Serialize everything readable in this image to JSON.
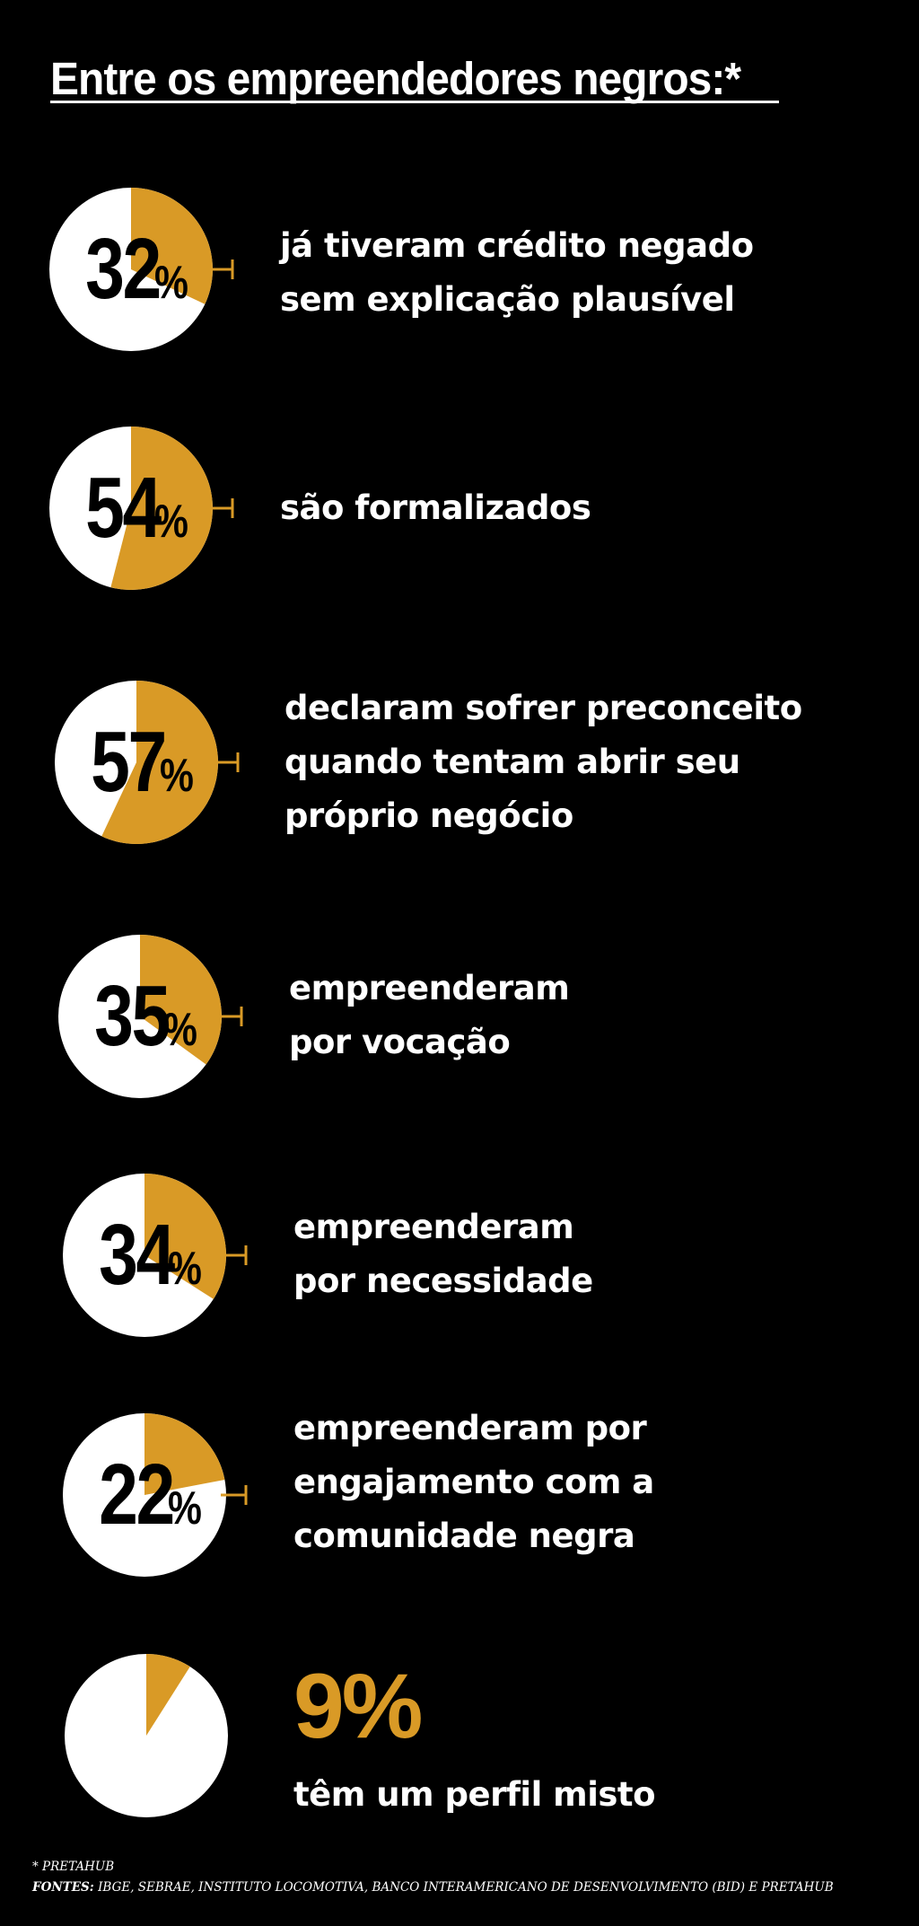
{
  "title": "Entre os empreendedores negros:*",
  "colors": {
    "background": "#000000",
    "accent": "#d99a26",
    "pie_base": "#ffffff",
    "text": "#ffffff"
  },
  "chart_data": {
    "type": "pie",
    "title": "Entre os empreendedores negros:*",
    "charts": [
      {
        "value": 32,
        "label": "32%",
        "description": [
          "já tiveram crédito negado",
          "sem explicação plausível"
        ]
      },
      {
        "value": 54,
        "label": "54%",
        "description": [
          "são formalizados"
        ]
      },
      {
        "value": 57,
        "label": "57%",
        "description": [
          "declaram sofrer preconceito",
          "quando tentam abrir seu",
          "próprio negócio"
        ]
      },
      {
        "value": 35,
        "label": "35%",
        "description": [
          "empreenderam",
          "por vocação"
        ]
      },
      {
        "value": 34,
        "label": "34%",
        "description": [
          "empreenderam",
          "por necessidade"
        ]
      },
      {
        "value": 22,
        "label": "22%",
        "description": [
          "empreenderam por",
          "engajamento com a",
          "comunidade negra"
        ]
      },
      {
        "value": 9,
        "label": "9%",
        "description": [
          "têm um perfil misto"
        ]
      }
    ]
  },
  "footnote": {
    "line1": "* PRETAHUB",
    "sources_label": "FONTES:",
    "sources": "IBGE, SEBRAE, INSTITUTO LOCOMOTIVA, BANCO INTERAMERICANO DE DESENVOLVIMENTO (BID) E PRETAHUB"
  }
}
